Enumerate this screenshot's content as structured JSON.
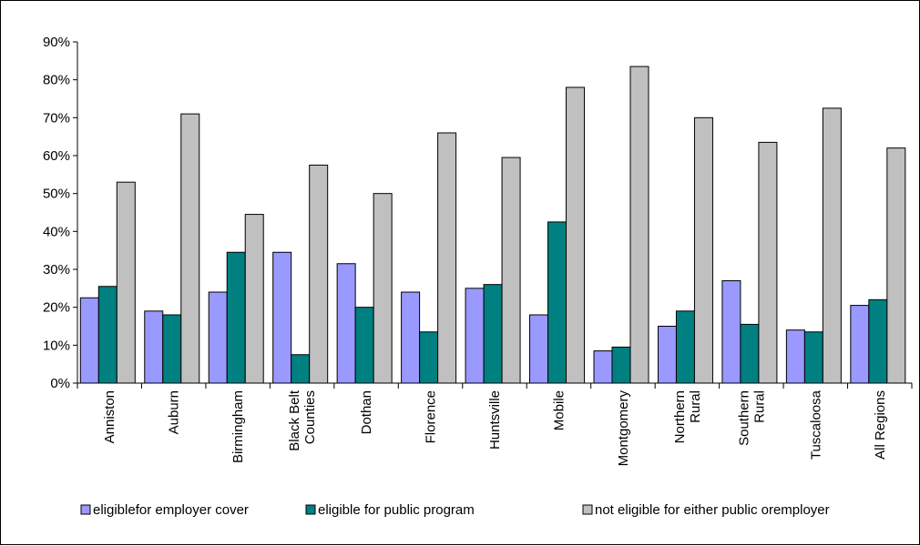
{
  "chart_data": {
    "type": "bar",
    "categories": [
      [
        "Anniston"
      ],
      [
        "Auburn"
      ],
      [
        "Birmingham"
      ],
      [
        "Black Belt",
        "Counties"
      ],
      [
        "Dothan"
      ],
      [
        "Florence"
      ],
      [
        "Huntsville"
      ],
      [
        "Mobile"
      ],
      [
        "Montgomery"
      ],
      [
        "Northern",
        "Rural"
      ],
      [
        "Southern",
        "Rural"
      ],
      [
        "Tuscaloosa"
      ],
      [
        "All Regions"
      ]
    ],
    "series": [
      {
        "name": "eligiblefor employer cover",
        "color": "#9999ff",
        "values": [
          22.5,
          19,
          24,
          34.5,
          31.5,
          24,
          25,
          18,
          8.5,
          15,
          27,
          14,
          20.5
        ]
      },
      {
        "name": "eligible for public program",
        "color": "#008080",
        "values": [
          25.5,
          18,
          34.5,
          7.5,
          20,
          13.5,
          26,
          42.5,
          9.5,
          19,
          15.5,
          13.5,
          22
        ]
      },
      {
        "name": "not eligible for either public oremployer",
        "color": "#c0c0c0",
        "values": [
          53,
          71,
          44.5,
          57.5,
          50,
          66,
          59.5,
          78,
          83.5,
          70,
          63.5,
          72.5,
          62
        ]
      }
    ],
    "y_ticks": [
      "0%",
      "10%",
      "20%",
      "30%",
      "40%",
      "50%",
      "60%",
      "70%",
      "80%",
      "90%"
    ],
    "ylim": [
      0,
      90
    ],
    "grid": false,
    "legend_position": "bottom"
  }
}
